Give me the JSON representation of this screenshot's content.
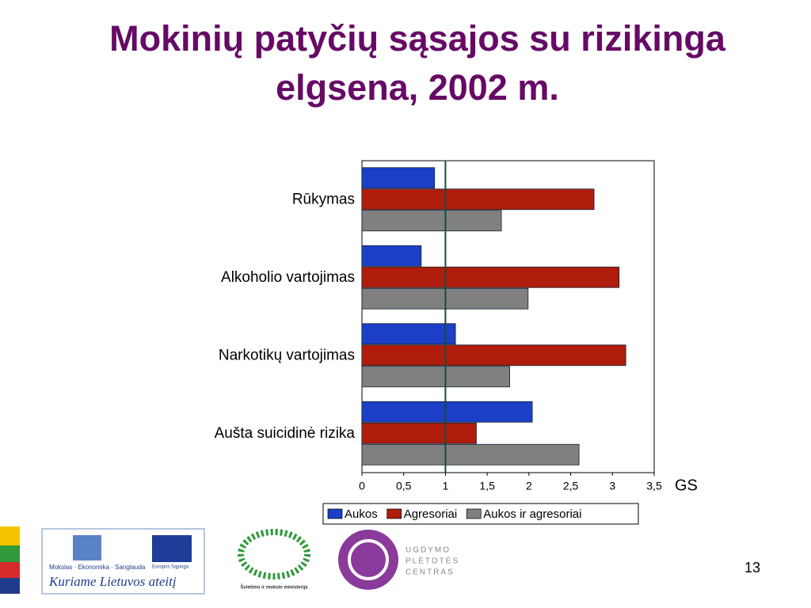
{
  "chart_data": {
    "type": "barh",
    "title": "Mokinių patyčių sąsajos su rizikinga elgsena,  2002 m.",
    "x_label": "GS",
    "categories": [
      "Rūkymas",
      "Alkoholio vartojimas",
      "Narkotikų vartojimas",
      "Aušta suicidinė rizika"
    ],
    "series": [
      {
        "name": "Aukos",
        "color": "#1c3fc7",
        "values": [
          0.87,
          0.71,
          1.12,
          2.04
        ]
      },
      {
        "name": "Agresoriai",
        "color": "#b01c0c",
        "values": [
          2.78,
          3.08,
          3.16,
          1.37
        ]
      },
      {
        "name": "Aukos ir agresoriai",
        "color": "#808080",
        "values": [
          1.67,
          1.99,
          1.77,
          2.6
        ]
      }
    ],
    "xlim": [
      0,
      3.5
    ],
    "xticks": [
      0,
      {
        "value": 0.5,
        "label": "0,5"
      },
      1,
      {
        "value": 1.5,
        "label": "1,5"
      },
      2,
      {
        "value": 2.5,
        "label": "2,5"
      },
      3,
      {
        "value": 3.5,
        "label": "3,5"
      }
    ],
    "reference_line": 1,
    "legend": "bottom"
  },
  "footer": {
    "logo_1_line": "Mokslas · Ekonomika · Sanglauda",
    "logo_1_eu": "Europos Sąjunga",
    "logo_1_slogan": "Kuriame Lietuvos ateitį",
    "logo_2": "Švietimo ir mokslo ministerija",
    "logo_3": [
      "UGDYMO",
      "PLĖTOTĖS",
      "CENTRAS"
    ],
    "page_number": "13"
  }
}
